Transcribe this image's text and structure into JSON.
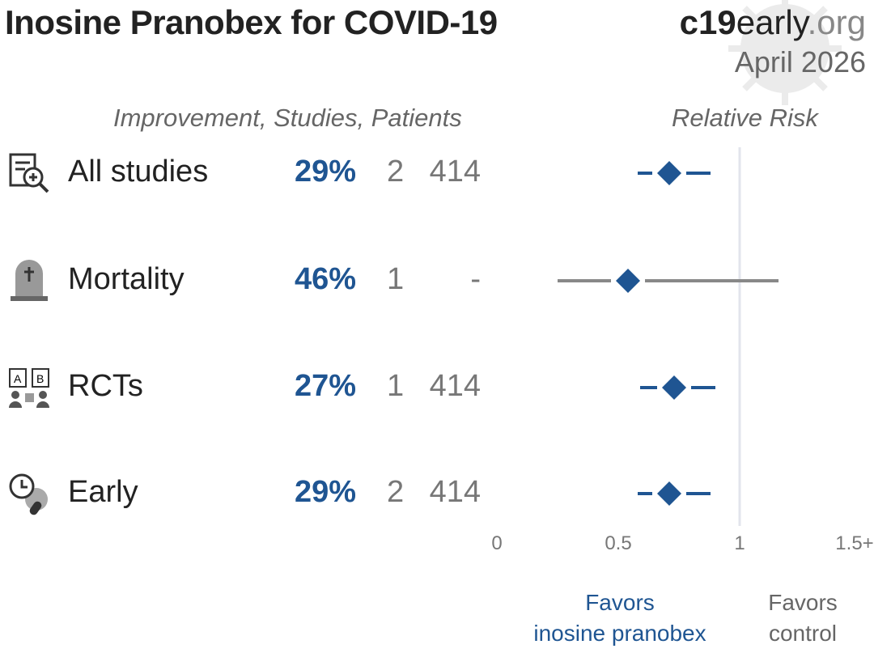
{
  "header": {
    "title": "Inosine Pranobex for COVID-19",
    "brand_bold": "c19",
    "brand_mid": "early",
    "brand_org": ".org",
    "date": "April 2026"
  },
  "columns": {
    "left": "Improvement, Studies, Patients",
    "right": "Relative Risk"
  },
  "chart_data": {
    "type": "forest",
    "title": "Inosine Pranobex for COVID-19",
    "xlabel": "Relative Risk",
    "xlim": [
      0,
      1.5
    ],
    "ticks": [
      {
        "v": 0,
        "label": "0"
      },
      {
        "v": 0.5,
        "label": "0.5"
      },
      {
        "v": 1,
        "label": "1"
      },
      {
        "v": 1.5,
        "label": "1.5+"
      }
    ],
    "reference_line": 1,
    "rows": [
      {
        "label": "All studies",
        "icon": "studies-magnifier-icon",
        "improvement": "29%",
        "studies": "2",
        "patients": "414",
        "rr": 0.71,
        "ci": [
          0.58,
          0.88
        ],
        "ci_color": "#1f5592"
      },
      {
        "label": "Mortality",
        "icon": "tombstone-icon",
        "improvement": "46%",
        "studies": "1",
        "patients": "-",
        "rr": 0.54,
        "ci": [
          0.25,
          1.16
        ],
        "ci_color": "#888888"
      },
      {
        "label": "RCTs",
        "icon": "rct-ab-icon",
        "improvement": "27%",
        "studies": "1",
        "patients": "414",
        "rr": 0.73,
        "ci": [
          0.59,
          0.9
        ],
        "ci_color": "#1f5592"
      },
      {
        "label": "Early",
        "icon": "early-clock-virus-icon",
        "improvement": "29%",
        "studies": "2",
        "patients": "414",
        "rr": 0.71,
        "ci": [
          0.58,
          0.88
        ],
        "ci_color": "#1f5592"
      }
    ],
    "favors_left": [
      "Favors",
      "inosine pranobex"
    ],
    "favors_right": [
      "Favors",
      "control"
    ]
  },
  "colors": {
    "accent": "#1f5592",
    "grey": "#777777",
    "refline": "#e2e4ec"
  }
}
